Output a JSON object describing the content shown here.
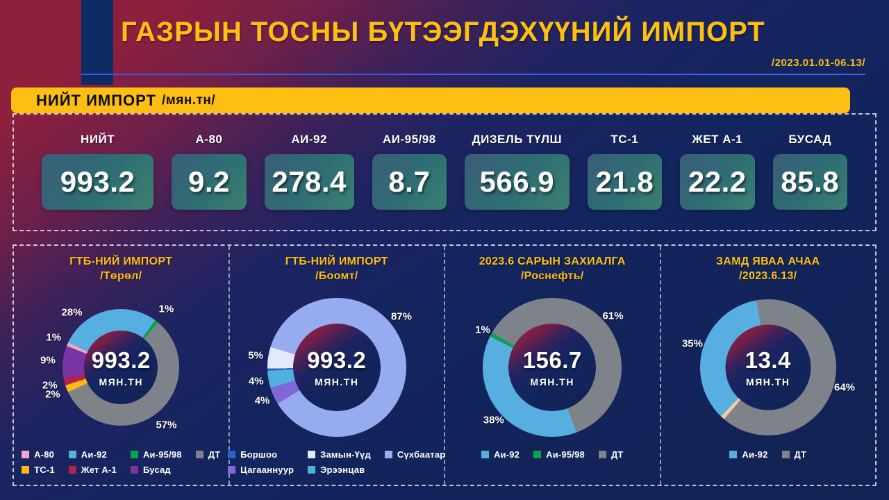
{
  "header": {
    "title": "ГАЗРЫН ТОСНЫ БҮТЭЭГДЭХҮҮНИЙ ИМПОРТ",
    "period": "/2023.01.01-06.13/"
  },
  "banner": {
    "title": "НИЙТ ИМПОРТ",
    "unit": "/мян.тн/"
  },
  "totals": [
    {
      "label": "НИЙТ",
      "value": "993.2"
    },
    {
      "label": "А-80",
      "value": "9.2"
    },
    {
      "label": "АИ-92",
      "value": "278.4"
    },
    {
      "label": "АИ-95/98",
      "value": "8.7"
    },
    {
      "label": "ДИЗЕЛЬ ТҮЛШ",
      "value": "566.9"
    },
    {
      "label": "ТС-1",
      "value": "21.8"
    },
    {
      "label": "ЖЕТ А-1",
      "value": "22.2"
    },
    {
      "label": "БУСАД",
      "value": "85.8"
    }
  ],
  "colors": {
    "background_red": "#8e1f3d",
    "background_navy": "#13255e",
    "accent_yellow": "#fcbf12",
    "header_line_blue": "#3e5ce0",
    "header_bar_navy": "#0e2b66",
    "stat_box_teal": "#2e6e74",
    "banner_text": "#0d0d0d"
  },
  "chart_data": [
    {
      "type": "donut",
      "title": "ГТБ-НИЙ ИМПОРТ",
      "subtitle": "/Төрөл/",
      "center_value": "993.2",
      "center_unit": "МЯН.ТН",
      "slices": [
        {
          "label": "Аи-92",
          "pct": 28,
          "deg": 100.8,
          "color": "#57aee0",
          "label_angle": 318
        },
        {
          "label": "Аи-95/98",
          "pct": 1,
          "deg": 3.6,
          "color": "#0ba14e"
        },
        {
          "label": "ДТ",
          "pct": 57,
          "deg": 205.2,
          "color": "#7e838a"
        },
        {
          "label": "ТС-1",
          "pct": 2,
          "deg": 7.2,
          "color": "#fcb813"
        },
        {
          "label": "Жет А-1",
          "pct": 2,
          "deg": 7.2,
          "color": "#b1234e"
        },
        {
          "label": "Бусад",
          "pct": 9,
          "deg": 32.4,
          "color": "#7a35a5"
        },
        {
          "label": "А-80",
          "pct": 1,
          "deg": 3.6,
          "color": "#f2a8c4"
        }
      ],
      "legend": [
        {
          "label": "А-80",
          "color": "#f2a8c4"
        },
        {
          "label": "Аи-92",
          "color": "#57aee0"
        },
        {
          "label": "Аи-95/98",
          "color": "#0ba14e"
        },
        {
          "label": "ДТ",
          "color": "#7e838a"
        },
        {
          "label": "ТС-1",
          "color": "#fcb813"
        },
        {
          "label": "Жет А-1",
          "color": "#b1234e"
        },
        {
          "label": "Бусад",
          "color": "#7a35a5"
        }
      ],
      "layout": {
        "size": 168,
        "rotation": 295.2,
        "label_offset": 22,
        "legend_cols": 4
      }
    },
    {
      "type": "donut",
      "title": "ГТБ-НИЙ ИМПОРТ",
      "subtitle": "/Боомт/",
      "center_value": "993.2",
      "center_unit": "МЯН.ТН",
      "slices": [
        {
          "label": "Сүхбаатар",
          "pct": 87,
          "deg": 311.4,
          "color": "#97abef",
          "label_angle": 52
        },
        {
          "label": "Цагааннуур",
          "pct": 4,
          "deg": 14.4,
          "color": "#8069d6"
        },
        {
          "label": "Эрээнцав",
          "pct": 4,
          "deg": 14.4,
          "color": "#4fb0de"
        },
        {
          "label": "Боршоо",
          "pct": null,
          "deg": 1.8,
          "color": "#2f62c6"
        },
        {
          "label": "Замын-Үүд",
          "pct": 5,
          "deg": 18.0,
          "color": "#e3e8fb"
        }
      ],
      "legend": [
        {
          "label": "Боршоо",
          "color": "#2f62c6"
        },
        {
          "label": "Замын-Үүд",
          "color": "#e3e8fb"
        },
        {
          "label": "Сүхбаатар",
          "color": "#97abef"
        },
        {
          "label": "Цагааннуур",
          "color": "#8069d6"
        },
        {
          "label": "Эрээнцав",
          "color": "#4fb0de"
        }
      ],
      "layout": {
        "size": 200,
        "rotation": 287,
        "label_offset": 18,
        "legend_cols": 3
      }
    },
    {
      "type": "donut",
      "title": "2023.6 САРЫН ЗАХИАЛГА",
      "subtitle": "/Роснефть/",
      "center_value": "156.7",
      "center_unit": "МЯН.ТН",
      "slices": [
        {
          "label": "ДТ",
          "pct": 61,
          "deg": 219.6,
          "color": "#7e838a"
        },
        {
          "label": "Аи-92",
          "pct": 38,
          "deg": 136.8,
          "color": "#57aee0"
        },
        {
          "label": "Аи-95/98",
          "pct": 1,
          "deg": 3.6,
          "color": "#0ba14e"
        }
      ],
      "legend": [
        {
          "label": "Аи-92",
          "color": "#57aee0"
        },
        {
          "label": "Аи-95/98",
          "color": "#0ba14e"
        },
        {
          "label": "ДТ",
          "color": "#7e838a"
        }
      ],
      "layout": {
        "size": 200,
        "rotation": 300,
        "label_offset": 14,
        "legend_cols": 3
      }
    },
    {
      "type": "donut",
      "title": "ЗАМД ЯВАА АЧАА",
      "subtitle": "/2023.6.13/",
      "center_value": "13.4",
      "center_unit": "МЯН.ТН",
      "slices": [
        {
          "label": "ДТ",
          "pct": 64,
          "deg": 230.4,
          "color": "#7e838a"
        },
        {
          "label": "",
          "pct": null,
          "deg": 3.6,
          "color": "#f5c8a3"
        },
        {
          "label": "Аи-92",
          "pct": 35,
          "deg": 126.0,
          "color": "#57aee0"
        }
      ],
      "legend": [
        {
          "label": "Аи-92",
          "color": "#57aee0"
        },
        {
          "label": "ДТ",
          "color": "#7e838a"
        }
      ],
      "layout": {
        "size": 196,
        "rotation": 350,
        "label_offset": 16,
        "legend_cols": 2
      }
    }
  ]
}
